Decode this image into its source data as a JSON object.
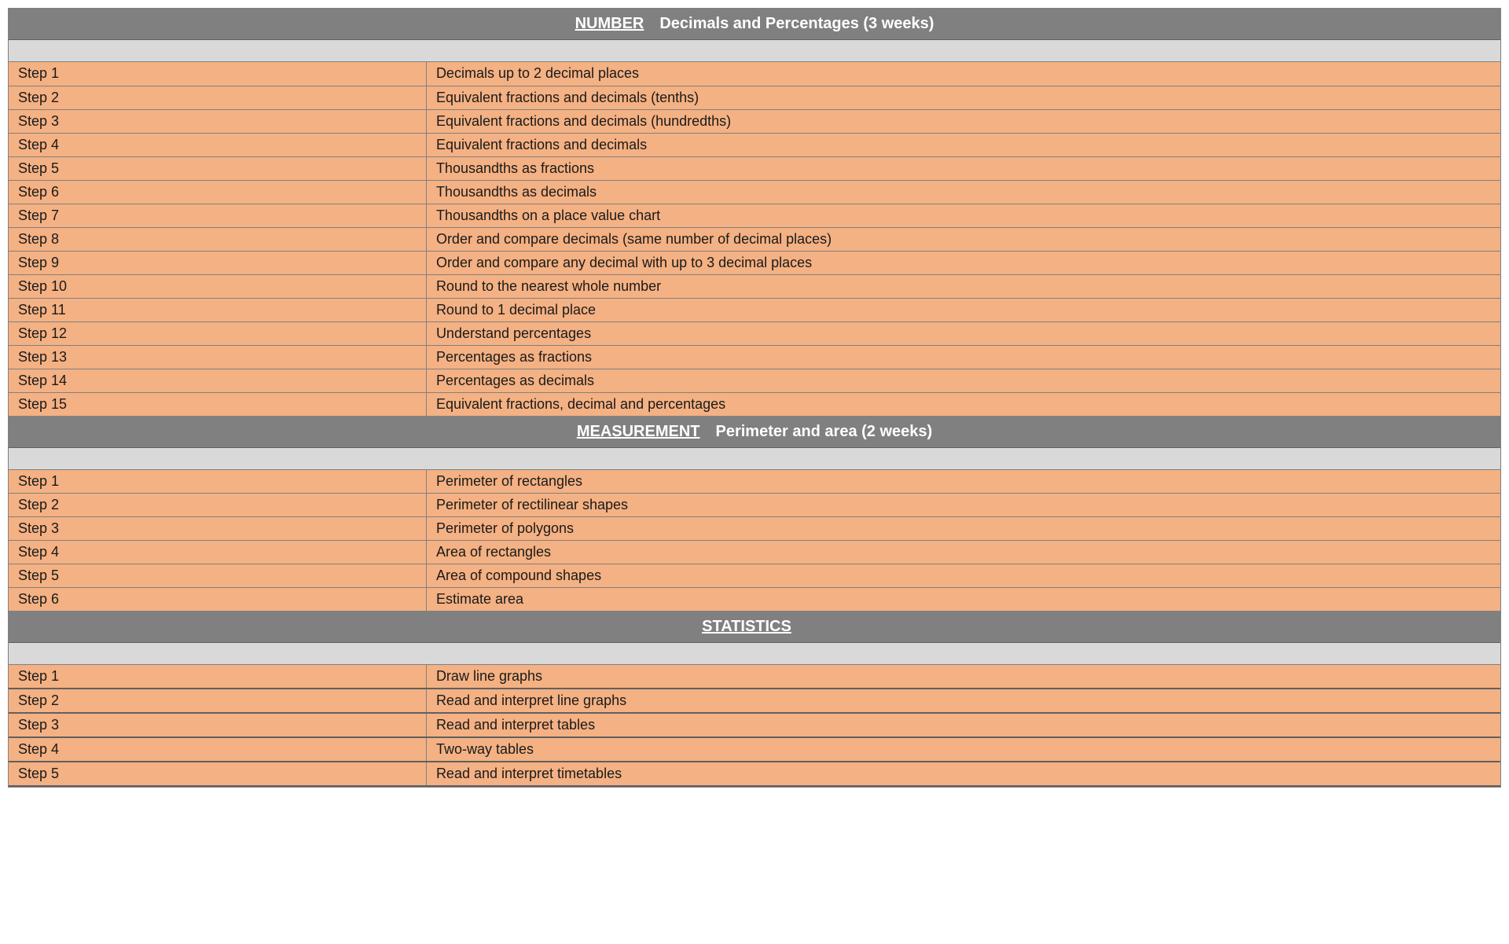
{
  "colors": {
    "header_bg": "#808080",
    "header_text": "#ffffff",
    "spacer_bg": "#d9d9d9",
    "row_bg": "#f4b183",
    "border": "#808080",
    "text": "#1a1a1a"
  },
  "layout": {
    "step_col_width_pct": 28,
    "desc_col_width_pct": 72,
    "header_fontsize": 20,
    "cell_fontsize": 18
  },
  "sections": [
    {
      "category": "NUMBER",
      "title": "Decimals and Percentages (3 weeks)",
      "thick_borders": false,
      "rows": [
        {
          "step": "Step 1",
          "desc": "Decimals up to 2 decimal places"
        },
        {
          "step": "Step 2",
          "desc": "Equivalent fractions and decimals (tenths)"
        },
        {
          "step": "Step 3",
          "desc": "Equivalent fractions and decimals (hundredths)"
        },
        {
          "step": "Step 4",
          "desc": "Equivalent fractions and decimals"
        },
        {
          "step": "Step 5",
          "desc": "Thousandths as fractions"
        },
        {
          "step": "Step 6",
          "desc": "Thousandths as decimals"
        },
        {
          "step": "Step 7",
          "desc": "Thousandths on a place value chart"
        },
        {
          "step": "Step 8",
          "desc": "Order and compare decimals (same number of decimal places)"
        },
        {
          "step": "Step 9",
          "desc": "Order and compare any decimal with up to 3 decimal places"
        },
        {
          "step": "Step 10",
          "desc": "Round to the nearest whole number"
        },
        {
          "step": "Step 11",
          "desc": "Round to 1 decimal place"
        },
        {
          "step": "Step 12",
          "desc": "Understand percentages"
        },
        {
          "step": "Step 13",
          "desc": "Percentages as fractions"
        },
        {
          "step": "Step 14",
          "desc": "Percentages as decimals"
        },
        {
          "step": "Step 15",
          "desc": "Equivalent fractions, decimal and percentages"
        }
      ]
    },
    {
      "category": "MEASUREMENT",
      "title": "Perimeter and area (2 weeks)",
      "thick_borders": false,
      "rows": [
        {
          "step": "Step 1",
          "desc": "Perimeter of rectangles"
        },
        {
          "step": "Step 2",
          "desc": "Perimeter of rectilinear shapes"
        },
        {
          "step": "Step 3",
          "desc": "Perimeter of polygons"
        },
        {
          "step": "Step 4",
          "desc": "Area of rectangles"
        },
        {
          "step": "Step 5",
          "desc": "Area of compound shapes"
        },
        {
          "step": "Step 6",
          "desc": "Estimate area"
        }
      ]
    },
    {
      "category": "STATISTICS",
      "title": "",
      "thick_borders": true,
      "rows": [
        {
          "step": "Step 1",
          "desc": "Draw line graphs"
        },
        {
          "step": "Step 2",
          "desc": "Read and interpret line graphs"
        },
        {
          "step": "Step 3",
          "desc": "Read and interpret tables"
        },
        {
          "step": "Step 4",
          "desc": "Two-way tables"
        },
        {
          "step": "Step 5",
          "desc": "Read and interpret timetables"
        }
      ]
    }
  ]
}
